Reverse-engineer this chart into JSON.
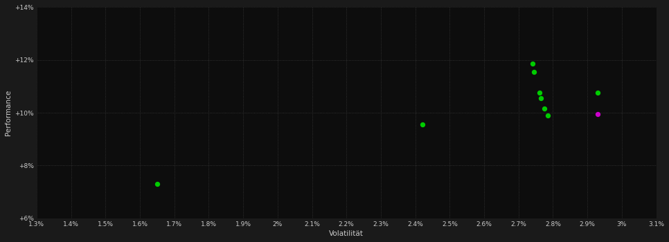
{
  "background_color": "#1a1a1a",
  "plot_bg_color": "#0d0d0d",
  "grid_color": "#3a3a3a",
  "text_color": "#cccccc",
  "xlabel": "Volatilität",
  "ylabel": "Performance",
  "xlim": [
    1.3,
    3.1
  ],
  "ylim": [
    6.0,
    14.0
  ],
  "xtick_labels": [
    "1.3%",
    "1.4%",
    "1.5%",
    "1.6%",
    "1.7%",
    "1.8%",
    "1.9%",
    "2%",
    "2.1%",
    "2.2%",
    "2.3%",
    "2.4%",
    "2.5%",
    "2.6%",
    "2.7%",
    "2.8%",
    "2.9%",
    "3%",
    "3.1%"
  ],
  "xtick_values": [
    1.3,
    1.4,
    1.5,
    1.6,
    1.7,
    1.8,
    1.9,
    2.0,
    2.1,
    2.2,
    2.3,
    2.4,
    2.5,
    2.6,
    2.7,
    2.8,
    2.9,
    3.0,
    3.1
  ],
  "ytick_labels": [
    "+6%",
    "+8%",
    "+10%",
    "+12%",
    "+14%"
  ],
  "ytick_values": [
    6,
    8,
    10,
    12,
    14
  ],
  "green_points": [
    [
      1.65,
      7.3
    ],
    [
      2.42,
      9.55
    ],
    [
      2.74,
      11.85
    ],
    [
      2.745,
      11.55
    ],
    [
      2.76,
      10.75
    ],
    [
      2.765,
      10.55
    ],
    [
      2.775,
      10.15
    ],
    [
      2.785,
      9.9
    ],
    [
      2.93,
      10.75
    ]
  ],
  "magenta_points": [
    [
      2.93,
      9.95
    ]
  ],
  "point_size": 28,
  "green_color": "#00cc00",
  "magenta_color": "#cc00cc"
}
